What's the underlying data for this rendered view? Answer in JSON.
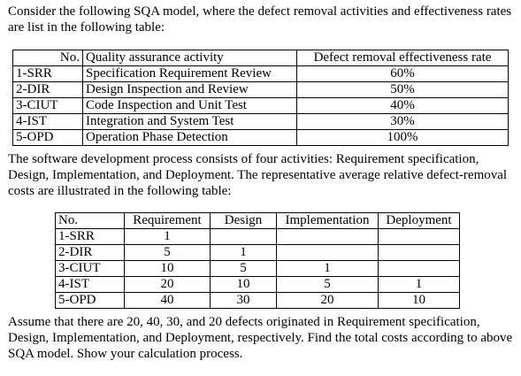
{
  "intro": "Consider the following SQA model, where the defect removal activities and effectiveness rates are list in the following table:",
  "table1": {
    "headers": [
      "No.",
      "Quality assurance activity",
      "Defect removal effectiveness rate"
    ],
    "rows": [
      [
        "1-SRR",
        "Specification Requirement Review",
        "60%"
      ],
      [
        "2-DIR",
        "Design Inspection and Review",
        "50%"
      ],
      [
        "3-CIUT",
        "Code Inspection and Unit Test",
        "40%"
      ],
      [
        "4-IST",
        "Integration and System Test",
        "30%"
      ],
      [
        "5-OPD",
        "Operation Phase Detection",
        "100%"
      ]
    ]
  },
  "middle": "The software development process consists of four activities: Requirement specification, Design, Implementation, and Deployment. The representative average relative defect-removal costs are illustrated in the following table:",
  "table2": {
    "headers": [
      "No.",
      "Requirement",
      "Design",
      "Implementation",
      "Deployment"
    ],
    "rows": [
      [
        "1-SRR",
        "1",
        "",
        "",
        ""
      ],
      [
        "2-DIR",
        "5",
        "1",
        "",
        ""
      ],
      [
        "3-CIUT",
        "10",
        "5",
        "1",
        ""
      ],
      [
        "4-IST",
        "20",
        "10",
        "5",
        "1"
      ],
      [
        "5-OPD",
        "40",
        "30",
        "20",
        "10"
      ]
    ]
  },
  "closing": "Assume that there are 20, 40, 30, and 20 defects originated in Requirement specification, Design, Implementation, and Deployment, respectively. Find the total costs according to above SQA model. Show your calculation process."
}
